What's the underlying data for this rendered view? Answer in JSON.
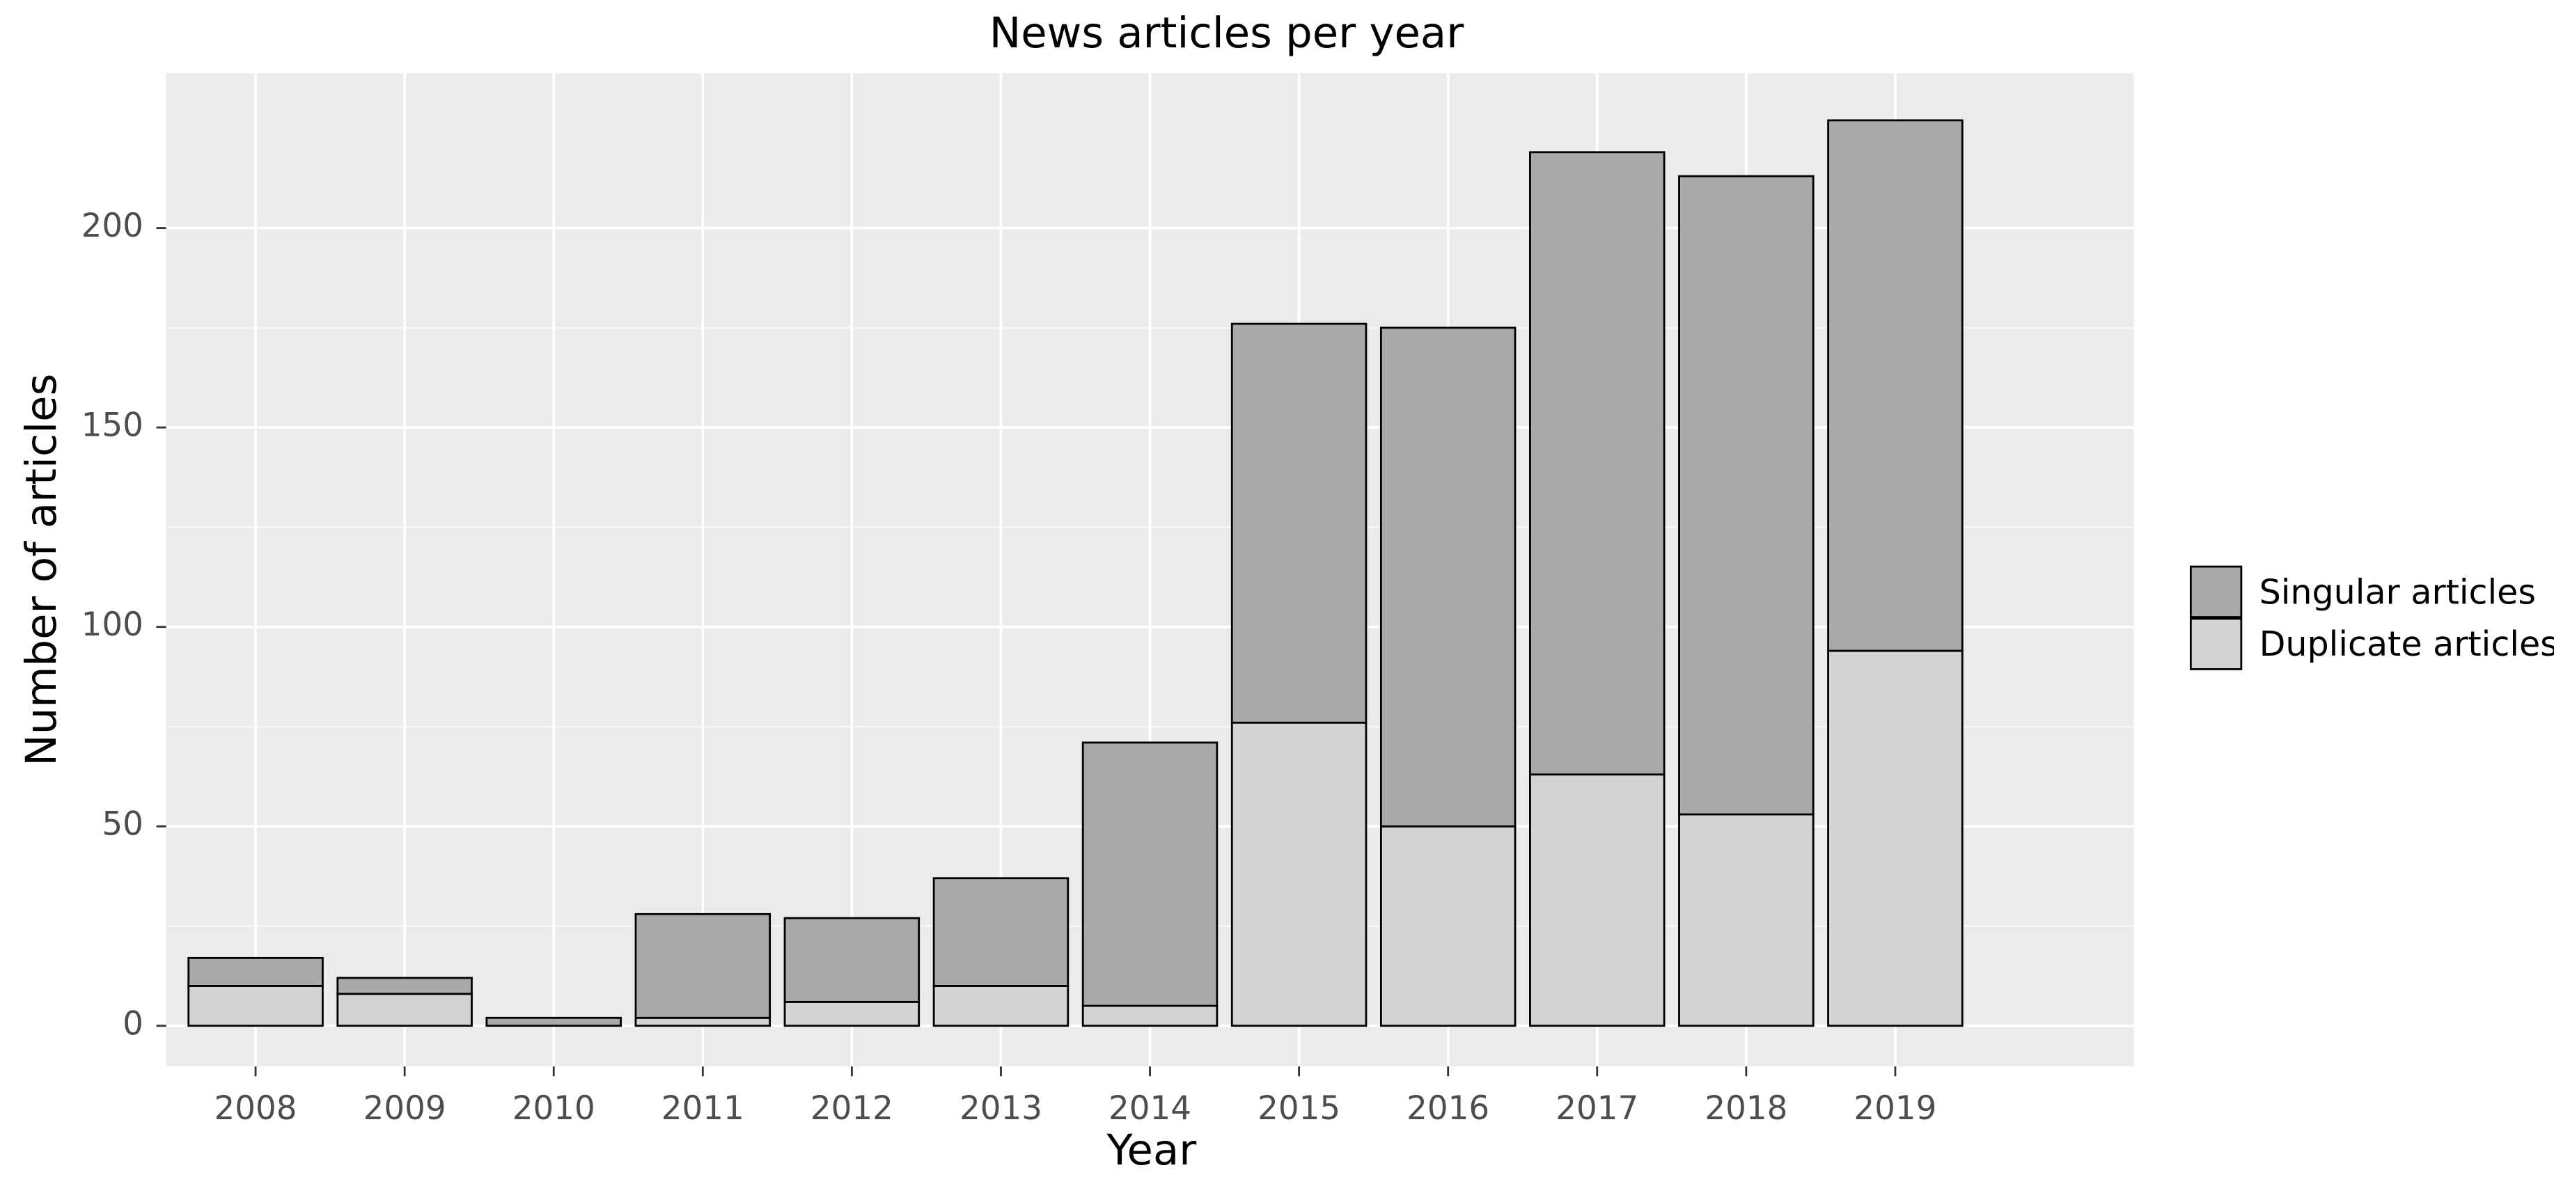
{
  "chart_data": {
    "type": "stacked_bar",
    "title": "News articles per year",
    "x_label": "Year",
    "y_label": "Number of articles",
    "categories": [
      "2008",
      "2009",
      "2010",
      "2011",
      "2012",
      "2013",
      "2014",
      "2015",
      "2016",
      "2017",
      "2018",
      "2019"
    ],
    "series": [
      {
        "name": "Singular articles",
        "color": "#a9a9a9",
        "values": [
          7,
          4,
          2,
          26,
          21,
          27,
          66,
          100,
          125,
          156,
          160,
          133
        ]
      },
      {
        "name": "Duplicate articles",
        "color": "#d3d3d3",
        "values": [
          10,
          8,
          0,
          2,
          6,
          10,
          5,
          76,
          50,
          63,
          53,
          94
        ]
      }
    ],
    "ylim": [
      -10.2,
      238.8
    ],
    "yticks": [
      0,
      50,
      100,
      150,
      200
    ],
    "grid": true,
    "legend": "right"
  }
}
